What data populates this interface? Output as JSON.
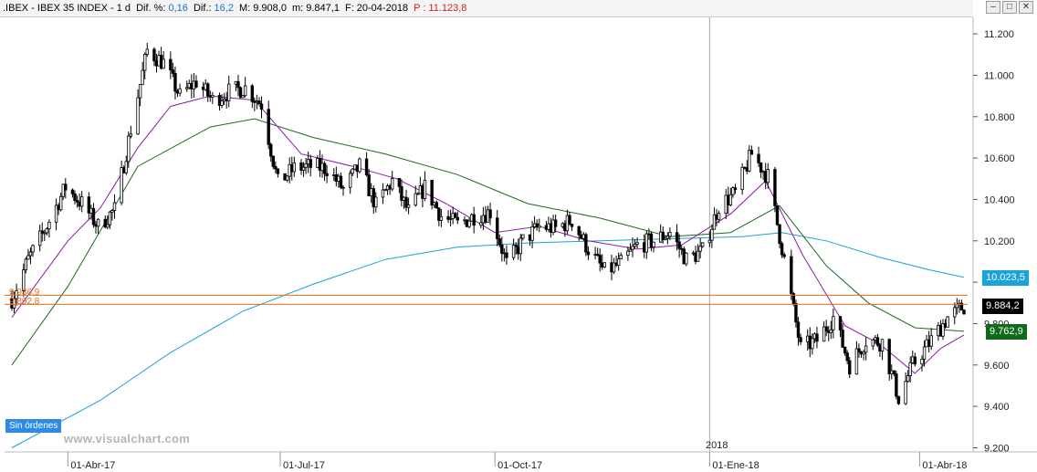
{
  "header": {
    "symbol": ".IBEX - IBEX 35 INDEX - 1 d",
    "dif_pct_label": "Dif. %:",
    "dif_pct_value": "0,16",
    "dif_label": "Dif.:",
    "dif_value": "16,2",
    "max_label": "M:",
    "max_value": "9.908,0",
    "min_label": "m:",
    "min_value": "9.847,1",
    "date_label": "F:",
    "date_value": "20-04-2018",
    "p_label": "P :",
    "p_value": "11.123,8"
  },
  "window_buttons": [
    "–",
    "□",
    "✕"
  ],
  "badge_sin_ordenes": "Sin órdenes",
  "watermark": "www.visualchart.com",
  "year_label": "2018",
  "price_labels": {
    "ma_long": "10.023,5",
    "last": "9.884,2",
    "ma_mid": "9.762,9"
  },
  "hline_labels": [
    "9.936,9",
    "9.892,8"
  ],
  "colors": {
    "up": "#000000",
    "down": "#000000",
    "ma_short": "#8e1aa8",
    "ma_mid": "#1d6b1d",
    "ma_long": "#1aa3d9",
    "hline": "#e07020",
    "last_box": "#000000",
    "ma_mid_box": "#0f6a1a",
    "ma_long_box": "#1aa3d9"
  },
  "chart_data": {
    "type": "candlestick",
    "y_ticks": [
      9200,
      9400,
      9600,
      9800,
      10000,
      10200,
      10400,
      10600,
      10800,
      11000,
      11200
    ],
    "y_tick_labels": [
      "9.200",
      "9.400",
      "9.600",
      "9.800",
      "10.000",
      "10.200",
      "10.400",
      "10.600",
      "10.800",
      "11.000",
      "11.200"
    ],
    "ylim": [
      9180,
      11280
    ],
    "x_range": [
      "2017-03-08",
      "2018-04-20"
    ],
    "x_ticks": [
      {
        "date": "2017-04-01",
        "label": "01-Abr-17"
      },
      {
        "date": "2017-07-01",
        "label": "01-Jul-17"
      },
      {
        "date": "2017-10-01",
        "label": "01-Oct-17"
      },
      {
        "date": "2018-01-01",
        "label": "01-Ene-18"
      },
      {
        "date": "2018-04-01",
        "label": "01-Abr-18"
      }
    ],
    "hlines": [
      9936.9,
      9892.8
    ],
    "close_path": [
      [
        "2017-03-08",
        9920
      ],
      [
        "2017-03-15",
        10110
      ],
      [
        "2017-03-22",
        10250
      ],
      [
        "2017-03-31",
        10460
      ],
      [
        "2017-04-07",
        10380
      ],
      [
        "2017-04-14",
        10270
      ],
      [
        "2017-04-21",
        10350
      ],
      [
        "2017-04-28",
        10740
      ],
      [
        "2017-05-05",
        11120
      ],
      [
        "2017-05-12",
        11060
      ],
      [
        "2017-05-19",
        10900
      ],
      [
        "2017-05-26",
        10970
      ],
      [
        "2017-06-02",
        10880
      ],
      [
        "2017-06-09",
        10920
      ],
      [
        "2017-06-16",
        10940
      ],
      [
        "2017-06-23",
        10860
      ],
      [
        "2017-06-30",
        10480
      ],
      [
        "2017-07-07",
        10550
      ],
      [
        "2017-07-14",
        10560
      ],
      [
        "2017-07-21",
        10550
      ],
      [
        "2017-07-28",
        10450
      ],
      [
        "2017-08-04",
        10560
      ],
      [
        "2017-08-11",
        10370
      ],
      [
        "2017-08-18",
        10490
      ],
      [
        "2017-08-25",
        10340
      ],
      [
        "2017-09-01",
        10460
      ],
      [
        "2017-09-08",
        10320
      ],
      [
        "2017-09-15",
        10280
      ],
      [
        "2017-09-22",
        10320
      ],
      [
        "2017-09-29",
        10340
      ],
      [
        "2017-10-06",
        10090
      ],
      [
        "2017-10-13",
        10200
      ],
      [
        "2017-10-20",
        10270
      ],
      [
        "2017-10-27",
        10260
      ],
      [
        "2017-11-03",
        10300
      ],
      [
        "2017-11-10",
        10160
      ],
      [
        "2017-11-17",
        10050
      ],
      [
        "2017-11-24",
        10090
      ],
      [
        "2017-12-01",
        10180
      ],
      [
        "2017-12-08",
        10200
      ],
      [
        "2017-12-15",
        10240
      ],
      [
        "2017-12-22",
        10110
      ],
      [
        "2017-12-29",
        10150
      ],
      [
        "2018-01-05",
        10370
      ],
      [
        "2018-01-12",
        10430
      ],
      [
        "2018-01-19",
        10620
      ],
      [
        "2018-01-26",
        10510
      ],
      [
        "2018-02-02",
        10110
      ],
      [
        "2018-02-09",
        9680
      ],
      [
        "2018-02-16",
        9720
      ],
      [
        "2018-02-23",
        9830
      ],
      [
        "2018-03-02",
        9600
      ],
      [
        "2018-03-09",
        9720
      ],
      [
        "2018-03-16",
        9710
      ],
      [
        "2018-03-23",
        9440
      ],
      [
        "2018-03-29",
        9600
      ],
      [
        "2018-04-06",
        9720
      ],
      [
        "2018-04-13",
        9830
      ],
      [
        "2018-04-20",
        9884
      ]
    ],
    "ma_short": [
      [
        "2017-03-08",
        9830
      ],
      [
        "2017-04-01",
        10200
      ],
      [
        "2017-04-15",
        10360
      ],
      [
        "2017-05-01",
        10650
      ],
      [
        "2017-05-15",
        10850
      ],
      [
        "2017-06-01",
        10900
      ],
      [
        "2017-06-20",
        10880
      ],
      [
        "2017-07-10",
        10620
      ],
      [
        "2017-08-01",
        10560
      ],
      [
        "2017-08-20",
        10500
      ],
      [
        "2017-09-10",
        10380
      ],
      [
        "2017-10-01",
        10240
      ],
      [
        "2017-10-20",
        10270
      ],
      [
        "2017-11-10",
        10200
      ],
      [
        "2017-12-01",
        10160
      ],
      [
        "2017-12-20",
        10180
      ],
      [
        "2018-01-10",
        10330
      ],
      [
        "2018-01-25",
        10490
      ],
      [
        "2018-02-10",
        10130
      ],
      [
        "2018-02-28",
        9790
      ],
      [
        "2018-03-15",
        9700
      ],
      [
        "2018-03-30",
        9560
      ],
      [
        "2018-04-10",
        9680
      ],
      [
        "2018-04-20",
        9745
      ]
    ],
    "ma_mid": [
      [
        "2017-03-08",
        9600
      ],
      [
        "2017-04-01",
        9980
      ],
      [
        "2017-05-01",
        10560
      ],
      [
        "2017-06-01",
        10750
      ],
      [
        "2017-06-20",
        10790
      ],
      [
        "2017-07-15",
        10700
      ],
      [
        "2017-08-15",
        10620
      ],
      [
        "2017-09-15",
        10520
      ],
      [
        "2017-10-15",
        10380
      ],
      [
        "2017-11-15",
        10310
      ],
      [
        "2017-12-15",
        10220
      ],
      [
        "2018-01-10",
        10240
      ],
      [
        "2018-01-31",
        10370
      ],
      [
        "2018-02-20",
        10080
      ],
      [
        "2018-03-10",
        9900
      ],
      [
        "2018-03-30",
        9780
      ],
      [
        "2018-04-20",
        9763
      ]
    ],
    "ma_long": [
      [
        "2017-03-08",
        9200
      ],
      [
        "2017-04-15",
        9430
      ],
      [
        "2017-05-15",
        9660
      ],
      [
        "2017-06-15",
        9860
      ],
      [
        "2017-07-15",
        9990
      ],
      [
        "2017-08-15",
        10110
      ],
      [
        "2017-09-15",
        10170
      ],
      [
        "2017-10-15",
        10190
      ],
      [
        "2017-11-15",
        10200
      ],
      [
        "2017-12-15",
        10210
      ],
      [
        "2018-01-15",
        10220
      ],
      [
        "2018-02-01",
        10240
      ],
      [
        "2018-02-20",
        10200
      ],
      [
        "2018-03-15",
        10120
      ],
      [
        "2018-04-05",
        10060
      ],
      [
        "2018-04-20",
        10023.5
      ]
    ]
  }
}
